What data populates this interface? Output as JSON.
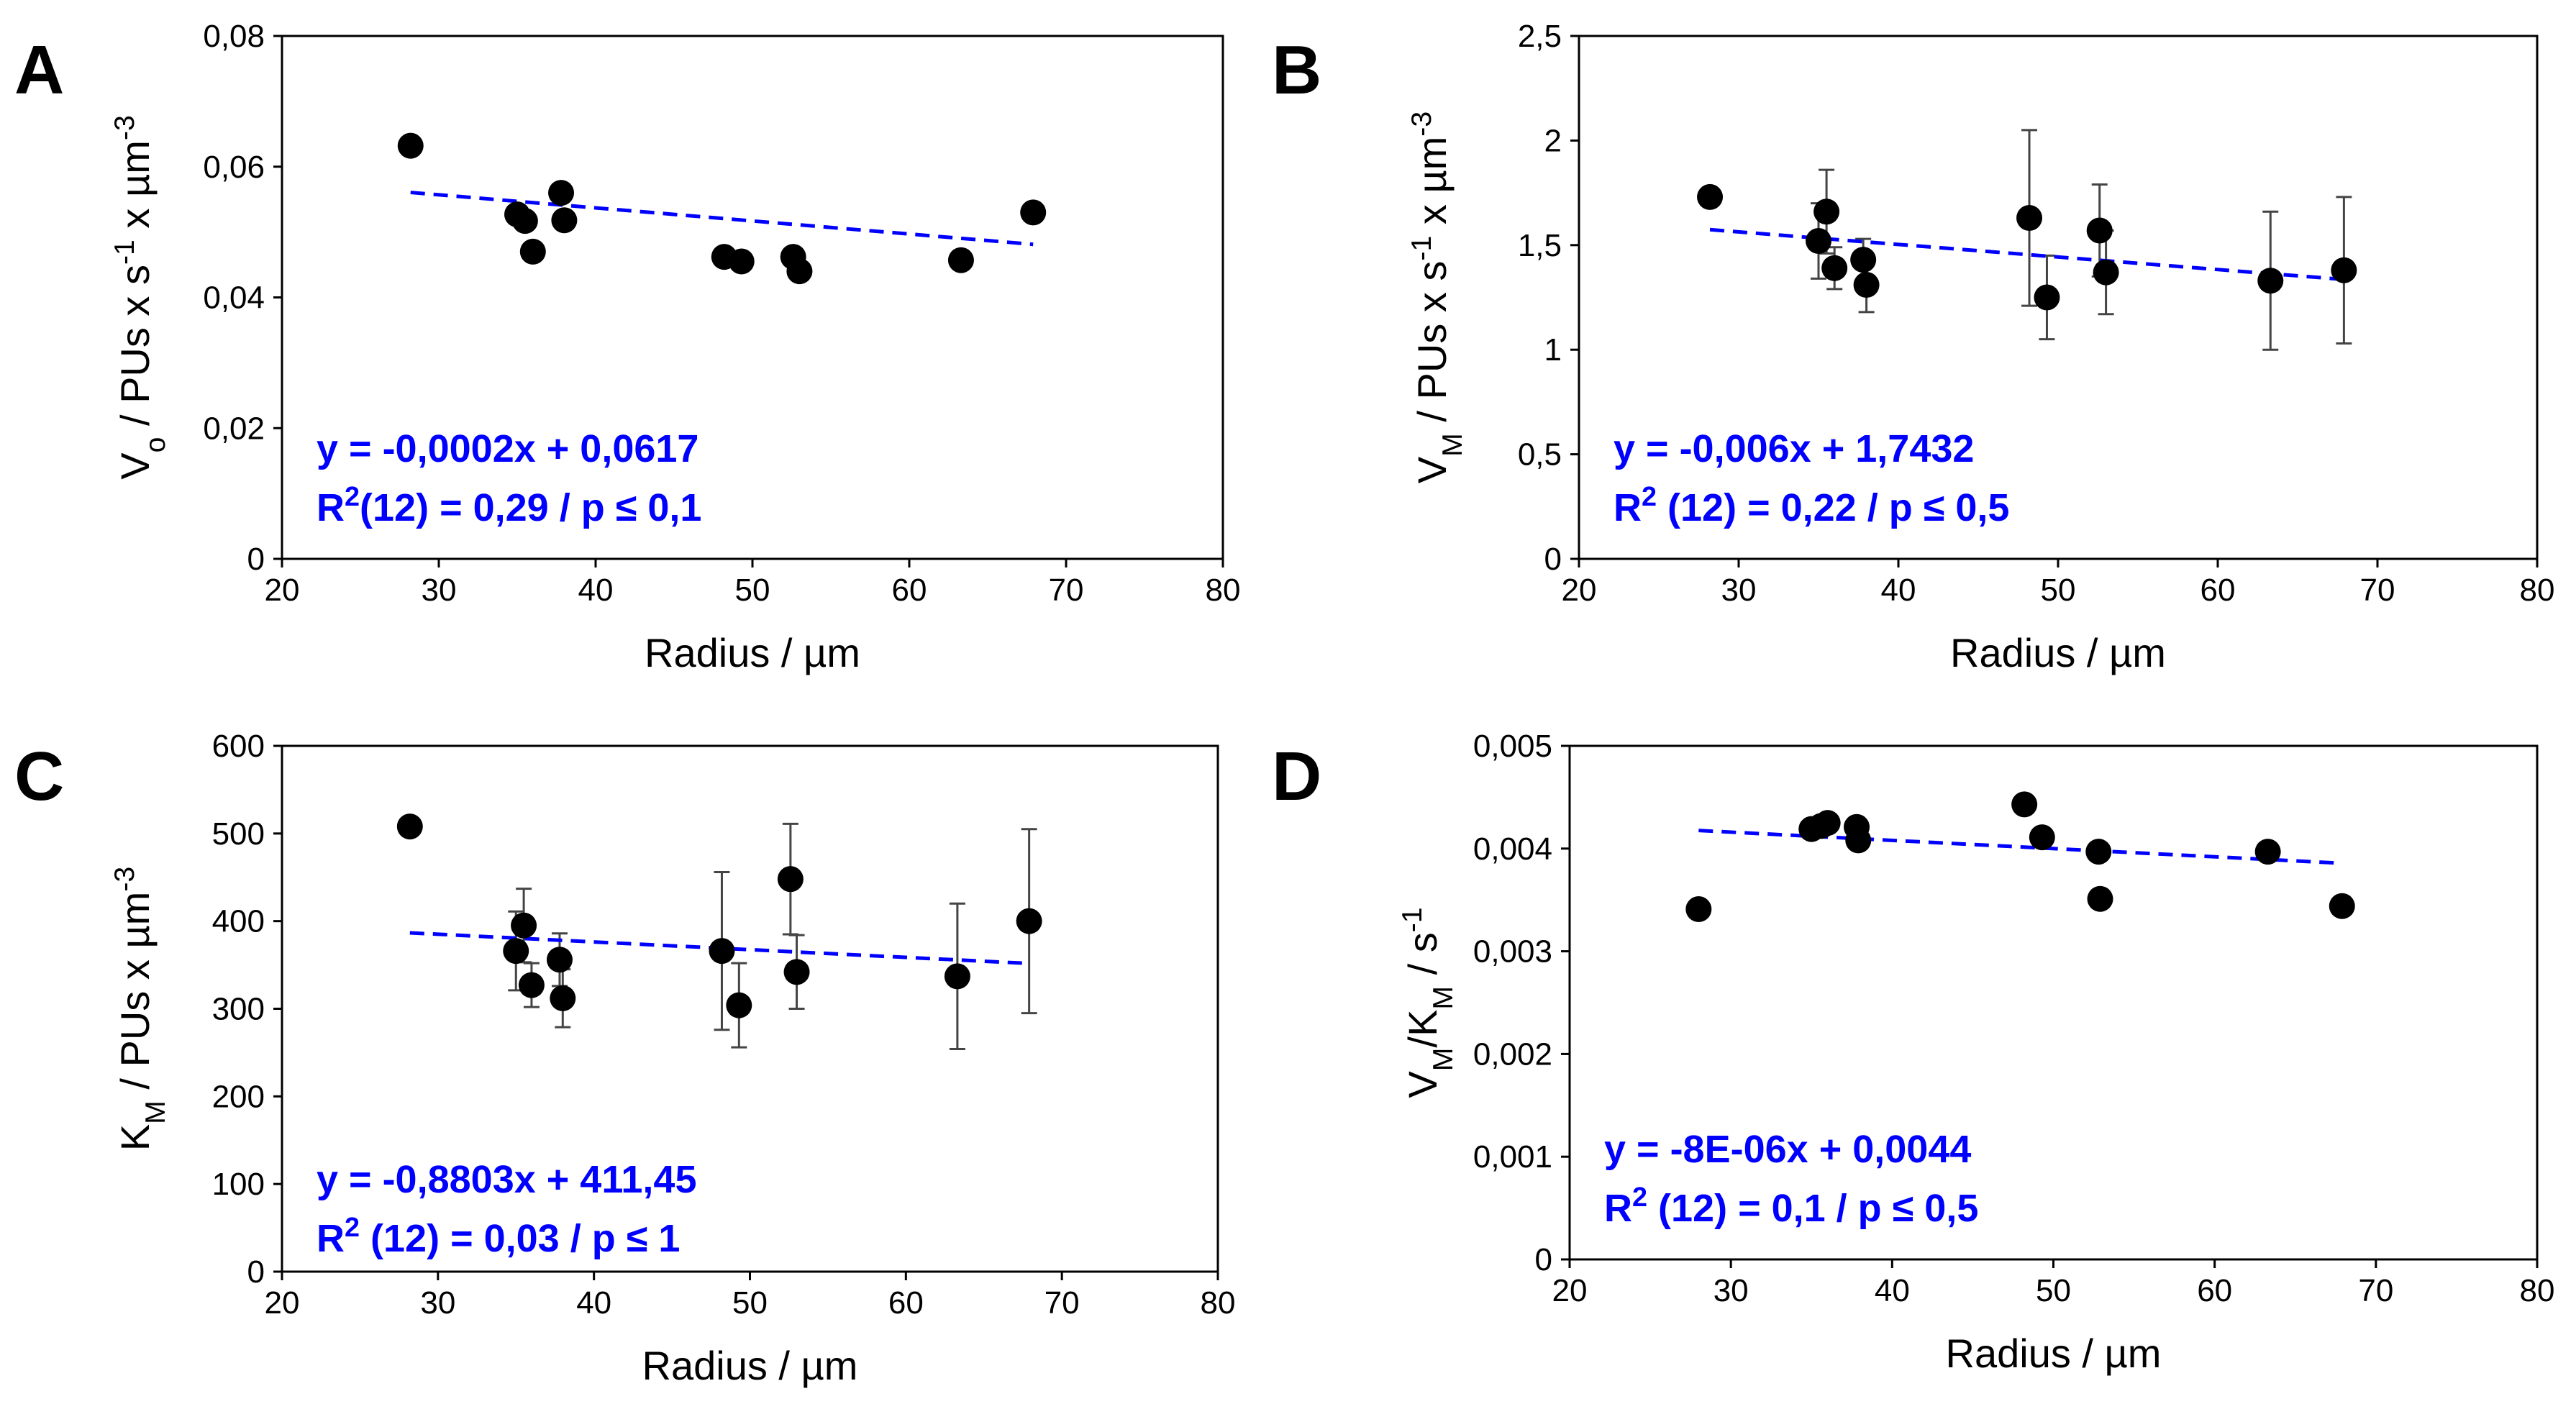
{
  "chart_data": [
    {
      "panel": "A",
      "type": "scatter",
      "xlabel": "Radius / µm",
      "ylabel_parts": [
        {
          "t": "V"
        },
        {
          "t": "o",
          "sub": true
        },
        {
          "t": "  / PUs x s"
        },
        {
          "t": "-1",
          "sup": true
        },
        {
          "t": " x µm"
        },
        {
          "t": "-3",
          "sup": true
        }
      ],
      "xlim": [
        20,
        80
      ],
      "ylim": [
        0,
        0.08
      ],
      "xticks": [
        20,
        30,
        40,
        50,
        60,
        70,
        80
      ],
      "yticks": [
        0,
        0.02,
        0.04,
        0.06,
        0.08
      ],
      "ytick_labels": [
        "0",
        "0,02",
        "0,04",
        "0,06",
        "0,08"
      ],
      "points": [
        {
          "x": 28.2,
          "y": 0.0632
        },
        {
          "x": 35.0,
          "y": 0.0527
        },
        {
          "x": 35.5,
          "y": 0.0517
        },
        {
          "x": 36.0,
          "y": 0.047
        },
        {
          "x": 37.8,
          "y": 0.056
        },
        {
          "x": 38.0,
          "y": 0.0518
        },
        {
          "x": 48.2,
          "y": 0.0462
        },
        {
          "x": 49.3,
          "y": 0.0455
        },
        {
          "x": 52.6,
          "y": 0.0462
        },
        {
          "x": 53.0,
          "y": 0.044
        },
        {
          "x": 63.3,
          "y": 0.0457
        },
        {
          "x": 67.9,
          "y": 0.053
        }
      ],
      "trendline": {
        "slope": -0.0002,
        "intercept": 0.0617,
        "x_range": [
          28.2,
          67.9
        ],
        "color": "#0000ff"
      },
      "equation": "y = -0,0002x + 0,0617",
      "r2_parts": [
        {
          "t": "R"
        },
        {
          "t": "2",
          "sup": true
        },
        {
          "t": "(12) = 0,29 / p ≤ 0,1"
        }
      ]
    },
    {
      "panel": "B",
      "type": "scatter",
      "xlabel": "Radius / µm",
      "ylabel_parts": [
        {
          "t": "V"
        },
        {
          "t": "M",
          "sub": true
        },
        {
          "t": " / PUs x s"
        },
        {
          "t": "-1",
          "sup": true
        },
        {
          "t": " x µm"
        },
        {
          "t": "-3",
          "sup": true
        }
      ],
      "xlim": [
        20,
        80
      ],
      "ylim": [
        0,
        2.5
      ],
      "xticks": [
        20,
        30,
        40,
        50,
        60,
        70,
        80
      ],
      "yticks": [
        0,
        0.5,
        1,
        1.5,
        2,
        2.5
      ],
      "ytick_labels": [
        "0",
        "0,5",
        "1",
        "1,5",
        "2",
        "2,5"
      ],
      "points": [
        {
          "x": 28.2,
          "y": 1.73
        },
        {
          "x": 35.0,
          "y": 1.52,
          "err": 0.18
        },
        {
          "x": 35.5,
          "y": 1.66,
          "err": 0.2
        },
        {
          "x": 36.0,
          "y": 1.39,
          "err": 0.1
        },
        {
          "x": 37.8,
          "y": 1.43,
          "err": 0.1
        },
        {
          "x": 38.0,
          "y": 1.31,
          "err": 0.13
        },
        {
          "x": 48.2,
          "y": 1.63,
          "err": 0.42
        },
        {
          "x": 49.3,
          "y": 1.25,
          "err": 0.2
        },
        {
          "x": 52.6,
          "y": 1.57,
          "err": 0.22
        },
        {
          "x": 53.0,
          "y": 1.37,
          "err": 0.2
        },
        {
          "x": 63.3,
          "y": 1.33,
          "err": 0.33
        },
        {
          "x": 67.9,
          "y": 1.38,
          "err": 0.35
        }
      ],
      "trendline": {
        "slope": -0.006,
        "intercept": 1.7432,
        "x_range": [
          28.2,
          67.9
        ],
        "color": "#0000ff"
      },
      "equation": "y = -0,006x + 1,7432",
      "r2_parts": [
        {
          "t": "R"
        },
        {
          "t": "2",
          "sup": true
        },
        {
          "t": " (12) = 0,22 / p ≤ 0,5"
        }
      ]
    },
    {
      "panel": "C",
      "type": "scatter",
      "xlabel": "Radius / µm",
      "ylabel_parts": [
        {
          "t": "K"
        },
        {
          "t": "M",
          "sub": true
        },
        {
          "t": "  / PUs x  µm"
        },
        {
          "t": "-3",
          "sup": true
        }
      ],
      "xlim": [
        20,
        80
      ],
      "ylim": [
        0,
        600
      ],
      "xticks": [
        20,
        30,
        40,
        50,
        60,
        70,
        80
      ],
      "yticks": [
        0,
        100,
        200,
        300,
        400,
        500,
        600
      ],
      "ytick_labels": [
        "0",
        "100",
        "200",
        "300",
        "400",
        "500",
        "600"
      ],
      "points": [
        {
          "x": 28.2,
          "y": 508
        },
        {
          "x": 35.0,
          "y": 366,
          "err": 45
        },
        {
          "x": 35.5,
          "y": 395,
          "err": 42
        },
        {
          "x": 36.0,
          "y": 327,
          "err": 25
        },
        {
          "x": 37.8,
          "y": 356,
          "err": 30
        },
        {
          "x": 38.0,
          "y": 312,
          "err": 33
        },
        {
          "x": 48.2,
          "y": 366,
          "err": 90
        },
        {
          "x": 49.3,
          "y": 304,
          "err": 48
        },
        {
          "x": 52.6,
          "y": 448,
          "err": 63
        },
        {
          "x": 53.0,
          "y": 342,
          "err": 42
        },
        {
          "x": 63.3,
          "y": 337,
          "err": 83
        },
        {
          "x": 67.9,
          "y": 400,
          "err": 105
        }
      ],
      "trendline": {
        "slope": -0.8803,
        "intercept": 411.45,
        "x_range": [
          28.2,
          67.9
        ],
        "color": "#0000ff"
      },
      "equation": "y = -0,8803x + 411,45",
      "r2_parts": [
        {
          "t": "R"
        },
        {
          "t": "2",
          "sup": true
        },
        {
          "t": " (12) = 0,03 / p ≤ 1"
        }
      ]
    },
    {
      "panel": "D",
      "type": "scatter",
      "xlabel": "Radius / µm",
      "ylabel_parts": [
        {
          "t": "V"
        },
        {
          "t": "M",
          "sub": true
        },
        {
          "t": "/K"
        },
        {
          "t": "M",
          "sub": true
        },
        {
          "t": "  /  s"
        },
        {
          "t": "-1",
          "sup": true
        }
      ],
      "xlim": [
        20,
        80
      ],
      "ylim": [
        0,
        0.005
      ],
      "xticks": [
        20,
        30,
        40,
        50,
        60,
        70,
        80
      ],
      "yticks": [
        0,
        0.001,
        0.002,
        0.003,
        0.004,
        0.005
      ],
      "ytick_labels": [
        "0",
        "0,001",
        "0,002",
        "0,003",
        "0,004",
        "0,005"
      ],
      "points": [
        {
          "x": 28.0,
          "y": 0.00341
        },
        {
          "x": 35.0,
          "y": 0.00419
        },
        {
          "x": 35.6,
          "y": 0.00422
        },
        {
          "x": 36.0,
          "y": 0.00425
        },
        {
          "x": 37.8,
          "y": 0.00421
        },
        {
          "x": 37.9,
          "y": 0.00408
        },
        {
          "x": 48.2,
          "y": 0.00443
        },
        {
          "x": 49.3,
          "y": 0.00411
        },
        {
          "x": 52.8,
          "y": 0.00397
        },
        {
          "x": 52.9,
          "y": 0.00351
        },
        {
          "x": 63.3,
          "y": 0.00397
        },
        {
          "x": 67.9,
          "y": 0.00344
        }
      ],
      "trendline": {
        "slope": -8e-06,
        "intercept": 0.0044,
        "x_range": [
          28.0,
          67.9
        ],
        "color": "#0000ff"
      },
      "equation": "y = -8E-06x + 0,0044",
      "r2_parts": [
        {
          "t": "R"
        },
        {
          "t": "2",
          "sup": true
        },
        {
          "t": " (12) = 0,1 / p ≤ 0,5"
        }
      ]
    }
  ]
}
